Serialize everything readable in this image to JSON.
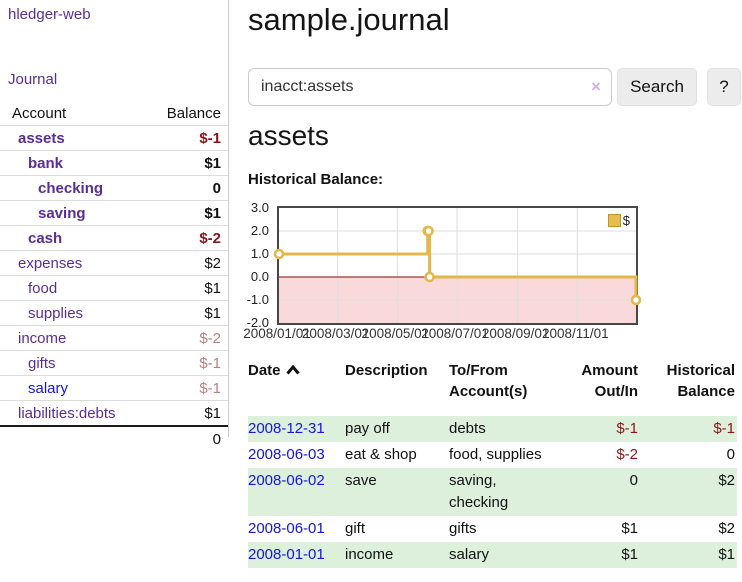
{
  "app": {
    "title": "hledger-web"
  },
  "sidebar": {
    "nav": {
      "journal_label": "Journal"
    },
    "accounts": {
      "headers": {
        "account": "Account",
        "balance": "Balance"
      },
      "rows": [
        {
          "account": "assets",
          "balance": "$-1",
          "indent": 0,
          "bold": true,
          "balance_style": "neg-strong"
        },
        {
          "account": "bank",
          "balance": "$1",
          "indent": 1,
          "bold": true,
          "balance_style": "pos"
        },
        {
          "account": "checking",
          "balance": "0",
          "indent": 2,
          "bold": true,
          "balance_style": "pos"
        },
        {
          "account": "saving",
          "balance": "$1",
          "indent": 2,
          "bold": true,
          "balance_style": "pos"
        },
        {
          "account": "cash",
          "balance": "$-2",
          "indent": 1,
          "bold": true,
          "balance_style": "neg-strong"
        },
        {
          "account": "expenses",
          "balance": "$2",
          "indent": 0,
          "bold": false,
          "balance_style": "pos"
        },
        {
          "account": "food",
          "balance": "$1",
          "indent": 1,
          "bold": false,
          "balance_style": "pos"
        },
        {
          "account": "supplies",
          "balance": "$1",
          "indent": 1,
          "bold": false,
          "balance_style": "pos"
        },
        {
          "account": "income",
          "balance": "$-2",
          "indent": 0,
          "bold": false,
          "balance_style": "neg-muted"
        },
        {
          "account": "gifts",
          "balance": "$-1",
          "indent": 1,
          "bold": false,
          "balance_style": "neg-muted"
        },
        {
          "account": "salary",
          "balance": "$-1",
          "indent": 1,
          "bold": false,
          "balance_style": "neg-muted",
          "account_style": "blue"
        },
        {
          "account": "liabilities:debts",
          "balance": "$1",
          "indent": 0,
          "bold": false,
          "balance_style": "pos"
        }
      ],
      "total": "0"
    }
  },
  "main": {
    "title": "sample.journal",
    "search": {
      "value": "inacct:assets",
      "clear_icon": "×",
      "button_label": "Search",
      "help_label": "?"
    },
    "account_heading": "assets",
    "chart_label": "Historical Balance:",
    "register": {
      "headers": [
        "Date",
        "Description",
        "To/From Account(s)",
        "Amount Out/In",
        "Historical Balance"
      ],
      "rows": [
        {
          "date": "2008-12-31",
          "description": "pay off",
          "to_from": "debts",
          "amount": "$-1",
          "amount_neg": true,
          "balance": "$-1",
          "balance_neg": true
        },
        {
          "date": "2008-06-03",
          "description": "eat & shop",
          "to_from": "food, supplies",
          "amount": "$-2",
          "amount_neg": true,
          "balance": "0",
          "balance_neg": false
        },
        {
          "date": "2008-06-02",
          "description": "save",
          "to_from": "saving,\nchecking",
          "amount": "0",
          "amount_neg": false,
          "balance": "$2",
          "balance_neg": false
        },
        {
          "date": "2008-06-01",
          "description": "gift",
          "to_from": "gifts",
          "amount": "$1",
          "amount_neg": false,
          "balance": "$2",
          "balance_neg": false
        },
        {
          "date": "2008-01-01",
          "description": "income",
          "to_from": "salary",
          "amount": "$1",
          "amount_neg": false,
          "balance": "$1",
          "balance_neg": false
        }
      ]
    }
  },
  "chart_data": {
    "type": "line",
    "step": true,
    "title": "Historical Balance:",
    "series": [
      {
        "name": "$",
        "points": [
          [
            "2008-01-01",
            1
          ],
          [
            "2008-06-01",
            2
          ],
          [
            "2008-06-02",
            2
          ],
          [
            "2008-06-03",
            0
          ],
          [
            "2008-12-31",
            -1
          ]
        ]
      }
    ],
    "xlim": [
      "2008-01-01",
      "2008-12-31"
    ],
    "ylim": [
      -2,
      3
    ],
    "yticks": [
      3,
      2,
      1,
      0,
      -1,
      -2
    ],
    "xticks": [
      {
        "date": "2008-01-01",
        "label": "2008/01/01"
      },
      {
        "date": "2008-03-01",
        "label": "2008/03/01"
      },
      {
        "date": "2008-05-01",
        "label": "2008/05/01"
      },
      {
        "date": "2008-07-01",
        "label": "2008/07/01"
      },
      {
        "date": "2008-09-01",
        "label": "2008/09/01"
      },
      {
        "date": "2008-11-01",
        "label": "2008/11/01"
      }
    ],
    "legend_position": "top-right",
    "grid": true,
    "colors": {
      "line": "#e4b74a",
      "marker_fill": "#ffffff",
      "negative_region": "#f9d9d9",
      "zero_line": "#8b0000",
      "grid": "#dedede",
      "border": "#474747"
    }
  }
}
